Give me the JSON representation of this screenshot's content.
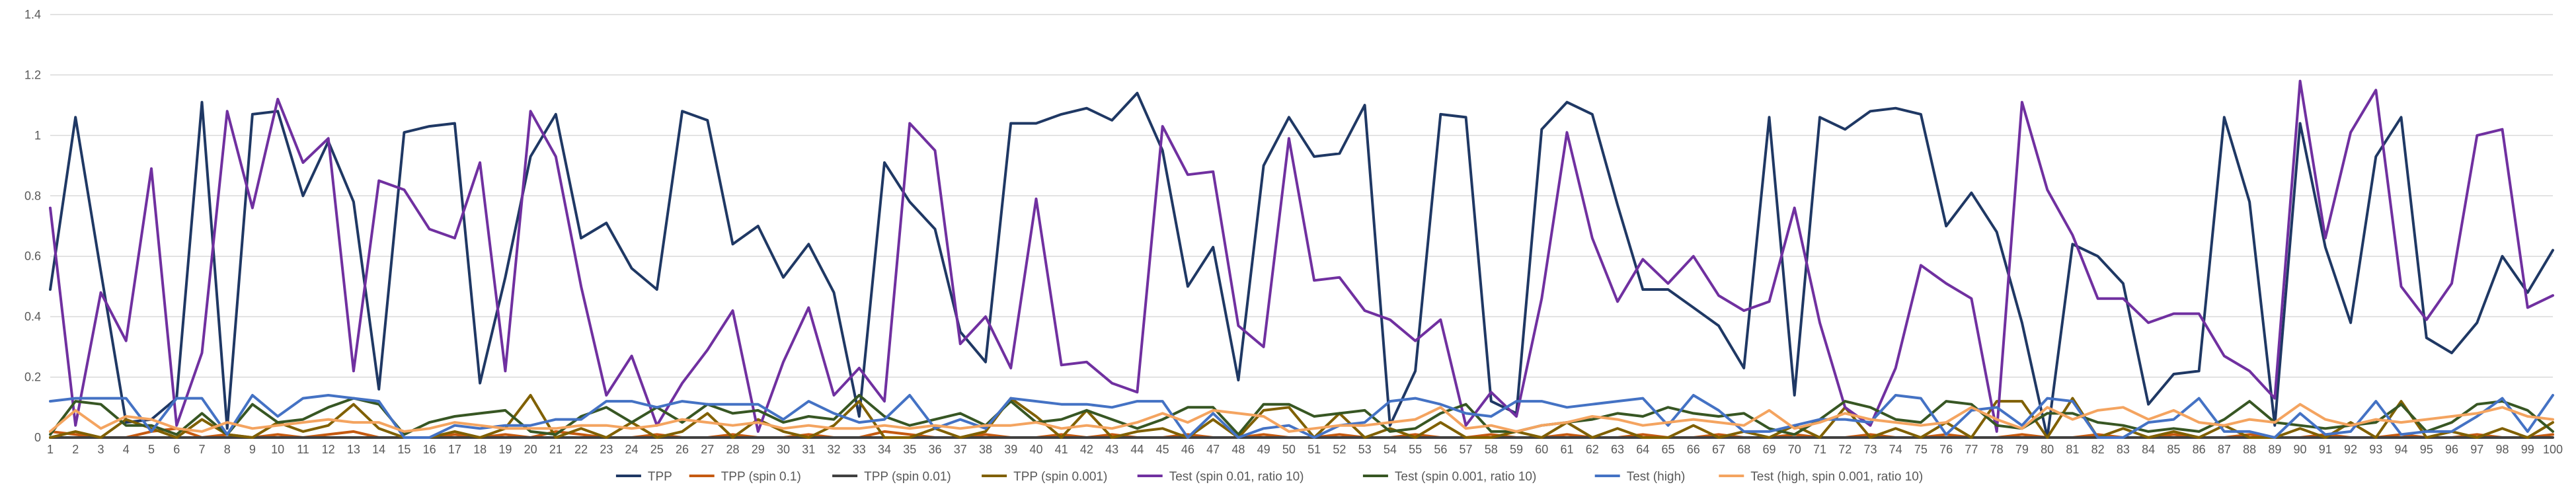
{
  "chart_data": {
    "type": "line",
    "title": "",
    "xlabel": "",
    "ylabel": "",
    "ylim": [
      0,
      1.4
    ],
    "yticks": [
      "0",
      "0.2",
      "0.4",
      "0.6",
      "0.8",
      "1",
      "1.2",
      "1.4"
    ],
    "grid": true,
    "legend_position": "bottom",
    "x": [
      1,
      2,
      3,
      4,
      5,
      6,
      7,
      8,
      9,
      10,
      11,
      12,
      13,
      14,
      15,
      16,
      17,
      18,
      19,
      20,
      21,
      22,
      23,
      24,
      25,
      26,
      27,
      28,
      29,
      30,
      31,
      32,
      33,
      34,
      35,
      36,
      37,
      38,
      39,
      40,
      41,
      42,
      43,
      44,
      45,
      46,
      47,
      48,
      49,
      50,
      51,
      52,
      53,
      54,
      55,
      56,
      57,
      58,
      59,
      60,
      61,
      62,
      63,
      64,
      65,
      66,
      67,
      68,
      69,
      70,
      71,
      72,
      73,
      74,
      75,
      76,
      77,
      78,
      79,
      80,
      81,
      82,
      83,
      84,
      85,
      86,
      87,
      88,
      89,
      90,
      91,
      92,
      93,
      94,
      95,
      96,
      97,
      98,
      99,
      100
    ],
    "series": [
      {
        "name": "TPP",
        "color": "#1f3864",
        "values": [
          0.49,
          1.06,
          0.55,
          0.05,
          0.06,
          0.13,
          1.11,
          0.03,
          1.07,
          1.08,
          0.8,
          0.98,
          0.78,
          0.16,
          1.01,
          1.03,
          1.04,
          0.18,
          0.53,
          0.93,
          1.07,
          0.66,
          0.71,
          0.56,
          0.49,
          1.08,
          1.05,
          0.64,
          0.7,
          0.53,
          0.64,
          0.48,
          0.07,
          0.91,
          0.78,
          0.69,
          0.35,
          0.25,
          1.04,
          1.04,
          1.07,
          1.09,
          1.05,
          1.14,
          0.95,
          0.5,
          0.63,
          0.19,
          0.9,
          1.06,
          0.93,
          0.94,
          1.1,
          0.04,
          0.22,
          1.07,
          1.06,
          0.12,
          0.08,
          1.02,
          1.11,
          1.07,
          0.77,
          0.49,
          0.49,
          0.43,
          0.37,
          0.23,
          1.06,
          0.14,
          1.06,
          1.02,
          1.08,
          1.09,
          1.07,
          0.7,
          0.81,
          0.68,
          0.38,
          0.0,
          0.64,
          0.6,
          0.51,
          0.11,
          0.21,
          0.22,
          1.06,
          0.78,
          0.04,
          1.04,
          0.63,
          0.38,
          0.93,
          1.06,
          0.33,
          0.28,
          0.38,
          0.6,
          0.48,
          0.62
        ]
      },
      {
        "name": "TPP (spin 0.1)",
        "color": "#c55a11",
        "values": [
          0.02,
          0.01,
          0.0,
          0.0,
          0.02,
          0.03,
          0.0,
          0.01,
          0.0,
          0.01,
          0.0,
          0.01,
          0.02,
          0.0,
          0.0,
          0.0,
          0.01,
          0.0,
          0.01,
          0.0,
          0.02,
          0.01,
          0.0,
          0.0,
          0.01,
          0.0,
          0.0,
          0.01,
          0.0,
          0.0,
          0.01,
          0.0,
          0.0,
          0.02,
          0.01,
          0.0,
          0.0,
          0.01,
          0.0,
          0.0,
          0.01,
          0.0,
          0.01,
          0.0,
          0.0,
          0.01,
          0.0,
          0.0,
          0.01,
          0.0,
          0.0,
          0.01,
          0.0,
          0.0,
          0.01,
          0.0,
          0.0,
          0.01,
          0.0,
          0.0,
          0.01,
          0.0,
          0.0,
          0.01,
          0.0,
          0.0,
          0.01,
          0.0,
          0.0,
          0.01,
          0.0,
          0.0,
          0.01,
          0.0,
          0.0,
          0.01,
          0.0,
          0.0,
          0.01,
          0.0,
          0.0,
          0.01,
          0.0,
          0.0,
          0.01,
          0.0,
          0.0,
          0.01,
          0.0,
          0.0,
          0.01,
          0.0,
          0.0,
          0.01,
          0.0,
          0.0,
          0.01,
          0.0,
          0.0,
          0.01
        ]
      },
      {
        "name": "TPP (spin 0.01)",
        "color": "#404040",
        "values": [
          0.0,
          0.0,
          0.0,
          0.0,
          0.0,
          0.0,
          0.0,
          0.0,
          0.0,
          0.0,
          0.0,
          0.0,
          0.0,
          0.0,
          0.0,
          0.0,
          0.0,
          0.0,
          0.0,
          0.0,
          0.0,
          0.0,
          0.0,
          0.0,
          0.0,
          0.0,
          0.0,
          0.0,
          0.0,
          0.0,
          0.0,
          0.0,
          0.0,
          0.0,
          0.0,
          0.0,
          0.0,
          0.0,
          0.0,
          0.0,
          0.0,
          0.0,
          0.0,
          0.0,
          0.0,
          0.0,
          0.0,
          0.0,
          0.0,
          0.0,
          0.0,
          0.0,
          0.0,
          0.0,
          0.0,
          0.0,
          0.0,
          0.0,
          0.0,
          0.0,
          0.0,
          0.0,
          0.0,
          0.0,
          0.0,
          0.0,
          0.0,
          0.0,
          0.0,
          0.0,
          0.0,
          0.0,
          0.0,
          0.0,
          0.0,
          0.0,
          0.0,
          0.0,
          0.0,
          0.0,
          0.0,
          0.0,
          0.0,
          0.0,
          0.0,
          0.0,
          0.0,
          0.0,
          0.0,
          0.0,
          0.0,
          0.0,
          0.0,
          0.0,
          0.0,
          0.0,
          0.0,
          0.0,
          0.0,
          0.0
        ]
      },
      {
        "name": "TPP (spin 0.001)",
        "color": "#806000",
        "values": [
          0.0,
          0.02,
          0.0,
          0.06,
          0.03,
          0.0,
          0.06,
          0.01,
          0.0,
          0.05,
          0.02,
          0.04,
          0.11,
          0.03,
          0.0,
          0.0,
          0.02,
          0.0,
          0.03,
          0.14,
          0.0,
          0.03,
          0.0,
          0.05,
          0.0,
          0.02,
          0.08,
          0.0,
          0.06,
          0.02,
          0.0,
          0.04,
          0.12,
          0.0,
          0.0,
          0.03,
          0.0,
          0.02,
          0.13,
          0.07,
          0.0,
          0.09,
          0.0,
          0.02,
          0.03,
          0.0,
          0.06,
          0.0,
          0.09,
          0.1,
          0.0,
          0.08,
          0.0,
          0.03,
          0.0,
          0.05,
          0.0,
          0.0,
          0.02,
          0.0,
          0.05,
          0.0,
          0.03,
          0.0,
          0.0,
          0.04,
          0.0,
          0.02,
          0.0,
          0.04,
          0.0,
          0.1,
          0.0,
          0.03,
          0.0,
          0.05,
          0.0,
          0.12,
          0.12,
          0.0,
          0.13,
          0.0,
          0.03,
          0.0,
          0.02,
          0.0,
          0.04,
          0.0,
          0.0,
          0.03,
          0.0,
          0.05,
          0.0,
          0.12,
          0.0,
          0.02,
          0.0,
          0.03,
          0.0,
          0.05
        ]
      },
      {
        "name": "Test (spin 0.01,  ratio 10)",
        "color": "#7030a0",
        "values": [
          0.76,
          0.04,
          0.48,
          0.32,
          0.89,
          0.04,
          0.28,
          1.08,
          0.76,
          1.12,
          0.91,
          0.99,
          0.22,
          0.85,
          0.82,
          0.69,
          0.66,
          0.91,
          0.22,
          1.08,
          0.93,
          0.5,
          0.14,
          0.27,
          0.04,
          0.18,
          0.29,
          0.42,
          0.02,
          0.25,
          0.43,
          0.14,
          0.23,
          0.12,
          1.04,
          0.95,
          0.31,
          0.4,
          0.23,
          0.79,
          0.24,
          0.25,
          0.18,
          0.15,
          1.03,
          0.87,
          0.88,
          0.37,
          0.3,
          0.99,
          0.52,
          0.53,
          0.42,
          0.39,
          0.32,
          0.39,
          0.04,
          0.15,
          0.07,
          0.46,
          1.01,
          0.66,
          0.45,
          0.59,
          0.51,
          0.6,
          0.47,
          0.42,
          0.45,
          0.76,
          0.38,
          0.1,
          0.04,
          0.23,
          0.57,
          0.51,
          0.46,
          0.02,
          1.11,
          0.82,
          0.67,
          0.46,
          0.46,
          0.38,
          0.41,
          0.41,
          0.27,
          0.22,
          0.13,
          1.18,
          0.66,
          1.01,
          1.15,
          0.5,
          0.39,
          0.51,
          1.0,
          1.02,
          0.43,
          0.47
        ]
      },
      {
        "name": "Test (spin 0.001,  ratio 10)",
        "color": "#375623",
        "values": [
          0.01,
          0.12,
          0.11,
          0.04,
          0.04,
          0.01,
          0.08,
          0.01,
          0.11,
          0.05,
          0.06,
          0.1,
          0.13,
          0.11,
          0.01,
          0.05,
          0.07,
          0.08,
          0.09,
          0.02,
          0.01,
          0.07,
          0.1,
          0.05,
          0.1,
          0.05,
          0.11,
          0.08,
          0.09,
          0.05,
          0.07,
          0.06,
          0.14,
          0.07,
          0.04,
          0.06,
          0.08,
          0.04,
          0.12,
          0.05,
          0.06,
          0.09,
          0.06,
          0.03,
          0.06,
          0.1,
          0.1,
          0.01,
          0.11,
          0.11,
          0.07,
          0.08,
          0.09,
          0.02,
          0.03,
          0.08,
          0.11,
          0.02,
          0.02,
          0.04,
          0.05,
          0.06,
          0.08,
          0.07,
          0.1,
          0.08,
          0.07,
          0.08,
          0.03,
          0.01,
          0.06,
          0.12,
          0.1,
          0.06,
          0.05,
          0.12,
          0.11,
          0.04,
          0.03,
          0.08,
          0.08,
          0.05,
          0.04,
          0.02,
          0.03,
          0.02,
          0.06,
          0.12,
          0.05,
          0.04,
          0.03,
          0.04,
          0.05,
          0.11,
          0.02,
          0.05,
          0.11,
          0.12,
          0.09,
          0.02
        ]
      },
      {
        "name": "Test (high)",
        "color": "#4472c4",
        "values": [
          0.12,
          0.13,
          0.13,
          0.13,
          0.02,
          0.13,
          0.13,
          0.01,
          0.14,
          0.07,
          0.13,
          0.14,
          0.13,
          0.12,
          0.0,
          0.0,
          0.04,
          0.03,
          0.04,
          0.04,
          0.06,
          0.06,
          0.12,
          0.12,
          0.1,
          0.12,
          0.11,
          0.11,
          0.11,
          0.06,
          0.12,
          0.08,
          0.05,
          0.06,
          0.14,
          0.03,
          0.06,
          0.03,
          0.13,
          0.12,
          0.11,
          0.11,
          0.1,
          0.12,
          0.12,
          0.0,
          0.08,
          0.0,
          0.03,
          0.04,
          0.0,
          0.04,
          0.05,
          0.12,
          0.13,
          0.11,
          0.08,
          0.07,
          0.12,
          0.12,
          0.1,
          0.11,
          0.12,
          0.13,
          0.04,
          0.14,
          0.09,
          0.02,
          0.02,
          0.04,
          0.06,
          0.06,
          0.05,
          0.14,
          0.13,
          0.01,
          0.09,
          0.1,
          0.04,
          0.13,
          0.12,
          0.0,
          0.0,
          0.05,
          0.06,
          0.13,
          0.02,
          0.02,
          0.0,
          0.08,
          0.01,
          0.02,
          0.12,
          0.01,
          0.02,
          0.02,
          0.07,
          0.13,
          0.02,
          0.14
        ]
      },
      {
        "name": "Test (high, spin 0.001, ratio 10)",
        "color": "#f4a460",
        "values": [
          0.02,
          0.09,
          0.03,
          0.07,
          0.06,
          0.03,
          0.02,
          0.05,
          0.03,
          0.04,
          0.05,
          0.06,
          0.05,
          0.05,
          0.02,
          0.03,
          0.05,
          0.04,
          0.03,
          0.03,
          0.03,
          0.04,
          0.04,
          0.03,
          0.04,
          0.06,
          0.05,
          0.04,
          0.05,
          0.03,
          0.04,
          0.03,
          0.03,
          0.04,
          0.03,
          0.04,
          0.03,
          0.04,
          0.04,
          0.05,
          0.03,
          0.04,
          0.03,
          0.05,
          0.08,
          0.05,
          0.09,
          0.08,
          0.07,
          0.02,
          0.03,
          0.04,
          0.04,
          0.05,
          0.06,
          0.1,
          0.03,
          0.04,
          0.02,
          0.04,
          0.05,
          0.07,
          0.06,
          0.04,
          0.05,
          0.06,
          0.05,
          0.04,
          0.09,
          0.03,
          0.05,
          0.08,
          0.06,
          0.05,
          0.04,
          0.05,
          0.1,
          0.06,
          0.03,
          0.1,
          0.06,
          0.09,
          0.1,
          0.06,
          0.09,
          0.05,
          0.04,
          0.06,
          0.05,
          0.11,
          0.06,
          0.04,
          0.06,
          0.05,
          0.06,
          0.07,
          0.08,
          0.1,
          0.07,
          0.06
        ]
      }
    ]
  }
}
